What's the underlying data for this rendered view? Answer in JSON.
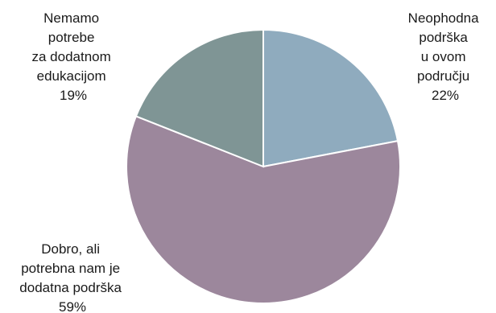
{
  "chart_data": {
    "type": "pie",
    "start_angle_deg": 0,
    "direction": "clockwise",
    "slices": [
      {
        "label_lines": [
          "Neophodna",
          "podrška",
          "u ovom",
          "području"
        ],
        "value": 22,
        "value_label": "22%",
        "color": "#8fabbe"
      },
      {
        "label_lines": [
          "Dobro, ali",
          "potrebna nam je",
          "dodatna podrška"
        ],
        "value": 59,
        "value_label": "59%",
        "color": "#9c879c"
      },
      {
        "label_lines": [
          "Nemamo",
          "potrebe",
          "za dodatnom",
          "edukacijom"
        ],
        "value": 19,
        "value_label": "19%",
        "color": "#7f9595"
      }
    ]
  }
}
